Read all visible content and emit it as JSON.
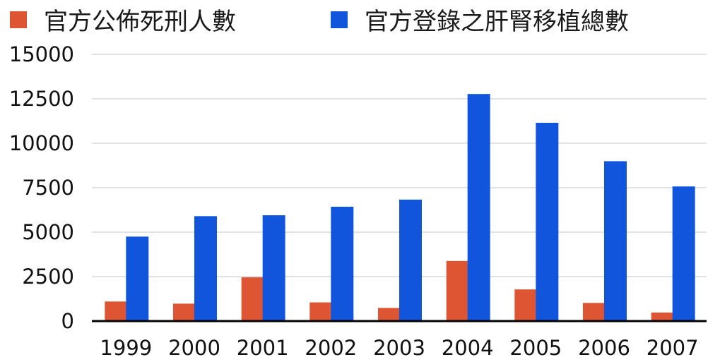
{
  "chart_data": {
    "type": "bar",
    "categories": [
      "1999",
      "2000",
      "2001",
      "2002",
      "2003",
      "2004",
      "2005",
      "2006",
      "2007"
    ],
    "series": [
      {
        "name": "官方公佈死刑人數",
        "color": "#dd5533",
        "values": [
          1100,
          980,
          2460,
          1050,
          740,
          3380,
          1780,
          1020,
          480
        ]
      },
      {
        "name": "官方登錄之肝腎移植總數",
        "color": "#1155dd",
        "values": [
          4750,
          5900,
          5950,
          6430,
          6830,
          12770,
          11150,
          8990,
          7570
        ]
      }
    ],
    "y_ticks": [
      "0",
      "2500",
      "5000",
      "7500",
      "10000",
      "12500",
      "15000"
    ],
    "ylim": [
      0,
      15000
    ],
    "grid": true,
    "legend_position": "top",
    "xlabel": "",
    "ylabel": "",
    "title": ""
  }
}
